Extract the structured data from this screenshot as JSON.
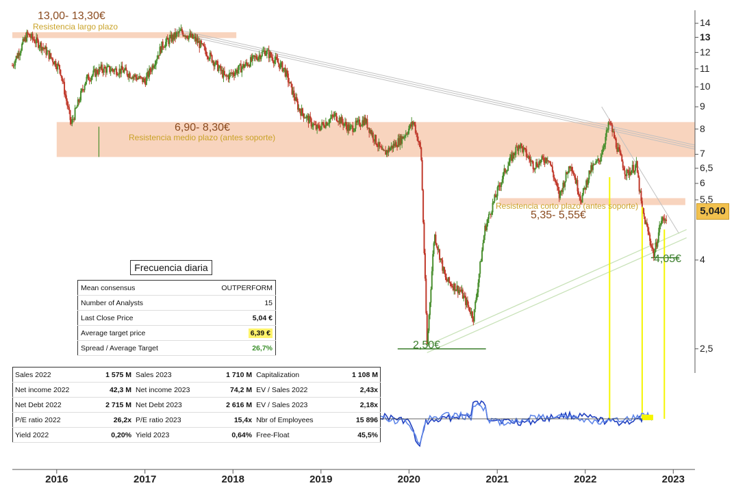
{
  "chart_data": {
    "type": "candlestick",
    "y_scale": "log",
    "ylim": [
      2.2,
      15.0
    ],
    "xlim": [
      "2015-07-01",
      "2023-04-01"
    ],
    "x_tick_labels": [
      "2016",
      "2017",
      "2018",
      "2019",
      "2020",
      "2021",
      "2022",
      "2023"
    ],
    "y_tick_labels": [
      "14",
      "13",
      "12",
      "11",
      "10",
      "9",
      "8",
      "7",
      "6,5",
      "6",
      "5,5",
      "4",
      "2,5"
    ],
    "price_series": [
      {
        "date": "2015-07-01",
        "close": 11.2
      },
      {
        "date": "2015-09-01",
        "close": 13.2
      },
      {
        "date": "2015-11-01",
        "close": 12.4
      },
      {
        "date": "2016-01-15",
        "close": 11.0
      },
      {
        "date": "2016-03-01",
        "close": 8.2
      },
      {
        "date": "2016-05-01",
        "close": 10.4
      },
      {
        "date": "2016-07-01",
        "close": 11.0
      },
      {
        "date": "2016-10-01",
        "close": 10.9
      },
      {
        "date": "2017-01-01",
        "close": 10.3
      },
      {
        "date": "2017-03-15",
        "close": 12.5
      },
      {
        "date": "2017-06-01",
        "close": 13.4
      },
      {
        "date": "2017-08-01",
        "close": 12.8
      },
      {
        "date": "2017-10-01",
        "close": 11.7
      },
      {
        "date": "2017-12-01",
        "close": 10.5
      },
      {
        "date": "2018-03-01",
        "close": 11.3
      },
      {
        "date": "2018-05-15",
        "close": 12.1
      },
      {
        "date": "2018-08-01",
        "close": 11.0
      },
      {
        "date": "2018-10-01",
        "close": 8.9
      },
      {
        "date": "2018-12-15",
        "close": 8.0
      },
      {
        "date": "2019-03-01",
        "close": 8.6
      },
      {
        "date": "2019-05-01",
        "close": 8.0
      },
      {
        "date": "2019-07-01",
        "close": 8.4
      },
      {
        "date": "2019-09-15",
        "close": 7.0
      },
      {
        "date": "2019-12-01",
        "close": 7.6
      },
      {
        "date": "2020-01-20",
        "close": 8.3
      },
      {
        "date": "2020-02-20",
        "close": 7.1
      },
      {
        "date": "2020-03-16",
        "close": 2.55
      },
      {
        "date": "2020-04-15",
        "close": 4.6
      },
      {
        "date": "2020-06-01",
        "close": 3.6
      },
      {
        "date": "2020-08-01",
        "close": 3.4
      },
      {
        "date": "2020-09-25",
        "close": 2.95
      },
      {
        "date": "2020-11-10",
        "close": 4.7
      },
      {
        "date": "2020-12-15",
        "close": 5.4
      },
      {
        "date": "2021-02-01",
        "close": 6.4
      },
      {
        "date": "2021-04-01",
        "close": 7.4
      },
      {
        "date": "2021-06-01",
        "close": 6.6
      },
      {
        "date": "2021-08-01",
        "close": 6.9
      },
      {
        "date": "2021-09-15",
        "close": 5.6
      },
      {
        "date": "2021-11-01",
        "close": 6.7
      },
      {
        "date": "2021-12-15",
        "close": 5.5
      },
      {
        "date": "2022-01-20",
        "close": 6.4
      },
      {
        "date": "2022-03-01",
        "close": 6.8
      },
      {
        "date": "2022-04-12",
        "close": 8.3
      },
      {
        "date": "2022-05-15",
        "close": 7.2
      },
      {
        "date": "2022-06-20",
        "close": 6.3
      },
      {
        "date": "2022-08-01",
        "close": 6.6
      },
      {
        "date": "2022-08-25",
        "close": 5.2
      },
      {
        "date": "2022-09-20",
        "close": 4.6
      },
      {
        "date": "2022-10-13",
        "close": 4.1
      },
      {
        "date": "2022-11-10",
        "close": 4.9
      },
      {
        "date": "2022-12-05",
        "close": 5.04
      }
    ],
    "levels": [
      {
        "label": "13,00- 13,30€",
        "sublabel": "Resistencia largo plazo",
        "low": 13.0,
        "high": 13.3
      },
      {
        "label": "6,90- 8,30€",
        "sublabel": "Resistencia medio plazo (antes soporte)",
        "low": 6.9,
        "high": 8.3
      },
      {
        "label": "5,35- 5,55€",
        "sublabel": "Resistencia corto plazo (antes soporte)",
        "low": 5.35,
        "high": 5.55
      }
    ],
    "supports": [
      {
        "label": "2,50€",
        "value": 2.5
      },
      {
        "label": "4,05€",
        "value": 4.05
      }
    ],
    "last_price_label": "5,040",
    "colors": {
      "up": "#4a8f2f",
      "down": "#c0392b",
      "zone": "#f5c6a8",
      "oscillator": "#2450c8",
      "vline": "#f5f500",
      "trend": "#c0c0c0",
      "support_trend": "#c8e2b8"
    }
  },
  "freq_label": "Frecuencia diaria",
  "consensus": [
    {
      "label": "Mean consensus",
      "value": "OUTPERFORM"
    },
    {
      "label": "Number of Analysts",
      "value": "15"
    },
    {
      "label": "Last Close Price",
      "value": "5,04 €"
    },
    {
      "label": "Average target price",
      "value": "6,39 €"
    },
    {
      "label": "Spread / Average Target",
      "value": "26,7%"
    }
  ],
  "financials": [
    [
      "Sales 2022",
      "1 575 M",
      "Sales 2023",
      "1 710 M",
      "Capitalization",
      "1 108 M"
    ],
    [
      "Net income 2022",
      "42,3 M",
      "Net income 2023",
      "74,2 M",
      "EV / Sales 2022",
      "2,43x"
    ],
    [
      "Net Debt 2022",
      "2 715 M",
      "Net Debt 2023",
      "2 616 M",
      "EV / Sales 2023",
      "2,18x"
    ],
    [
      "P/E ratio 2022",
      "26,2x",
      "P/E ratio 2023",
      "15,4x",
      "Nbr of Employees",
      "15 896"
    ],
    [
      "Yield 2022",
      "0,20%",
      "Yield 2023",
      "0,64%",
      "Free-Float",
      "45,5%"
    ]
  ]
}
